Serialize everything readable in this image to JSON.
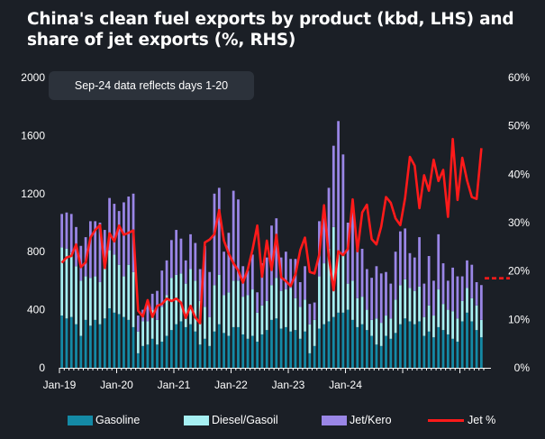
{
  "chart_data": {
    "type": "bar+line",
    "title_lines": [
      "China's clean fuel exports by product (kbd, LHS) and",
      "share of jet exports (%, RHS)"
    ],
    "annotation": "Sep-24 data reflects days 1-20",
    "left_axis": {
      "ticks": [
        "0",
        "400",
        "800",
        "1200",
        "1600",
        "2000"
      ],
      "ylim": [
        0,
        2000
      ]
    },
    "right_axis": {
      "ticks": [
        "0%",
        "10%",
        "20%",
        "30%",
        "40%",
        "50%",
        "60%"
      ],
      "ylim": [
        0,
        60
      ]
    },
    "x_tick_labels": [
      "Jan-19",
      "Jan-20",
      "Jan-21",
      "Jan-22",
      "Jan-23",
      "Jan-24"
    ],
    "categories_start": "Jan-19",
    "categories_end": "Sep-24",
    "stacked_series": [
      {
        "name": "Gasoline",
        "color": "#148aa6",
        "values": [
          360,
          340,
          350,
          300,
          220,
          330,
          290,
          330,
          300,
          340,
          410,
          380,
          370,
          350,
          330,
          280,
          100,
          150,
          160,
          200,
          160,
          180,
          220,
          260,
          300,
          320,
          280,
          300,
          250,
          160,
          200,
          150,
          250,
          300,
          240,
          220,
          280,
          280,
          230,
          200,
          220,
          180,
          230,
          260,
          330,
          340,
          270,
          280,
          250,
          260,
          200,
          250,
          100,
          150,
          270,
          300,
          320,
          350,
          380,
          380,
          400,
          330,
          280,
          300,
          260,
          220,
          160,
          150,
          220,
          200,
          240,
          300,
          340,
          320,
          300,
          320,
          220,
          250,
          210,
          280,
          260,
          230,
          200,
          180,
          320,
          380,
          320,
          260,
          210
        ]
      },
      {
        "name": "Diesel/Gasoil",
        "color": "#a6eff2",
        "values": [
          470,
          480,
          440,
          400,
          380,
          300,
          330,
          300,
          290,
          380,
          400,
          400,
          340,
          280,
          380,
          380,
          150,
          170,
          160,
          200,
          170,
          240,
          280,
          360,
          340,
          330,
          300,
          380,
          350,
          300,
          220,
          200,
          320,
          340,
          260,
          300,
          320,
          320,
          260,
          300,
          320,
          200,
          200,
          200,
          240,
          280,
          260,
          260,
          300,
          220,
          220,
          220,
          200,
          180,
          360,
          420,
          500,
          620,
          400,
          400,
          180,
          270,
          200,
          190,
          140,
          110,
          180,
          160,
          140,
          140,
          230,
          270,
          270,
          230,
          230,
          240,
          130,
          180,
          150,
          260,
          180,
          170,
          190,
          160,
          140,
          170,
          160,
          170,
          120
        ]
      },
      {
        "name": "Jet/Kero",
        "color": "#9a86e6",
        "values": [
          230,
          250,
          270,
          270,
          240,
          270,
          390,
          380,
          410,
          230,
          360,
          350,
          370,
          510,
          470,
          540,
          110,
          80,
          130,
          110,
          200,
          250,
          240,
          260,
          310,
          240,
          160,
          240,
          260,
          220,
          420,
          310,
          630,
          600,
          300,
          410,
          620,
          560,
          210,
          170,
          240,
          140,
          290,
          300,
          410,
          410,
          230,
          260,
          200,
          270,
          170,
          230,
          140,
          120,
          380,
          370,
          420,
          560,
          920,
          690,
          420,
          480,
          340,
          330,
          280,
          290,
          360,
          340,
          300,
          240,
          330,
          370,
          350,
          240,
          230,
          340,
          230,
          340,
          240,
          380,
          280,
          200,
          300,
          290,
          170,
          190,
          230,
          160,
          240
        ]
      }
    ],
    "line_series": {
      "name": "Jet %",
      "color": "#ff1a1a",
      "values": [
        21.7,
        22.8,
        23.1,
        25.5,
        20.8,
        21.8,
        26.9,
        28.5,
        29.5,
        20.6,
        27.8,
        26.1,
        29.4,
        27.5,
        27.9,
        28.4,
        11.8,
        10.6,
        14.0,
        10.5,
        12.8,
        13.2,
        14.3,
        13.8,
        14.3,
        13.5,
        10.3,
        12.8,
        10.4,
        9.2,
        25.9,
        26.5,
        27.6,
        32.6,
        26.3,
        23.6,
        21.6,
        20.1,
        17.6,
        20.3,
        24.4,
        29.4,
        18.8,
        26.3,
        20.2,
        27.5,
        18.7,
        17.9,
        16.9,
        19.3,
        24.3,
        26.9,
        19.8,
        19.5,
        23.4,
        33.6,
        22.9,
        16.0,
        24.1,
        23.3,
        24.6,
        34.8,
        24.1,
        32.1,
        33.7,
        26.6,
        25.5,
        29.2,
        35.3,
        34.1,
        30.9,
        29.5,
        35.1,
        43.6,
        41.8,
        33.0,
        39.8,
        36.6,
        43.0,
        38.6,
        40.9,
        31.2,
        47.3,
        34.7,
        43.4,
        38.7,
        35.3,
        34.9,
        45.4
      ]
    },
    "forecast_marker": {
      "series": "Jet %",
      "value": 18.5
    },
    "legend": [
      "Gasoline",
      "Diesel/Gasoil",
      "Jet/Kero",
      "Jet %"
    ]
  }
}
